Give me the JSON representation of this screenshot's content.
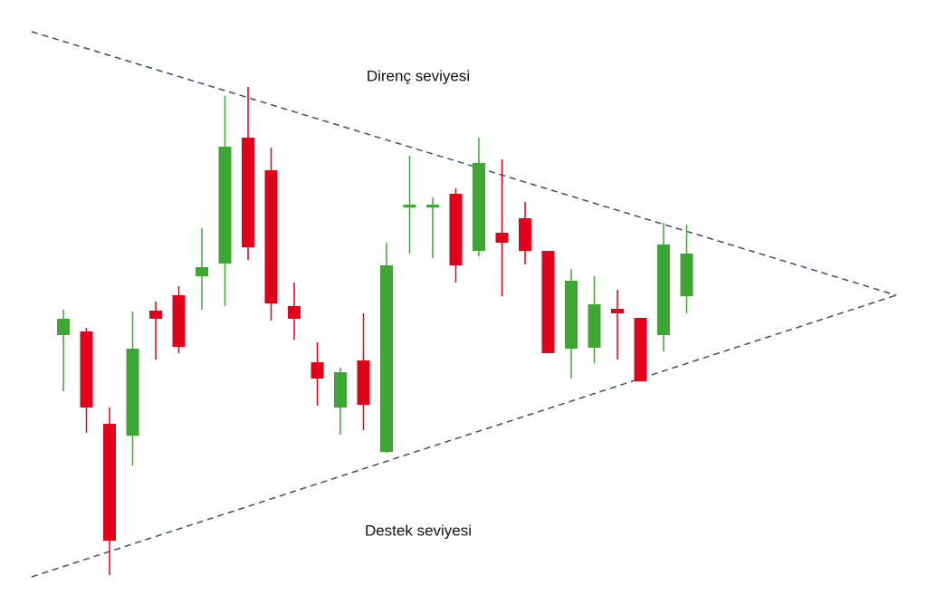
{
  "chart_data": {
    "type": "candlestick",
    "annotations": [
      {
        "text": "Direnç seviyesi"
      },
      {
        "text": "Destek seviyesi"
      }
    ],
    "up_color": "#3fa535",
    "down_color": "#e2001a",
    "ylim": [
      0,
      678
    ],
    "open": [
      308,
      312,
      210,
      197,
      335,
      352,
      373,
      387,
      526,
      490,
      340,
      278,
      228,
      280,
      179,
      449,
      449,
      464,
      401,
      421,
      437,
      401,
      293,
      294,
      337,
      327,
      308,
      351
    ],
    "high": [
      336,
      316,
      228,
      334,
      345,
      362,
      426,
      572,
      582,
      515,
      366,
      300,
      272,
      332,
      410,
      506,
      460,
      470,
      526,
      502,
      455,
      401,
      381,
      373,
      358,
      327,
      432,
      430
    ],
    "low": [
      246,
      200,
      43,
      164,
      281,
      288,
      336,
      340,
      391,
      324,
      303,
      230,
      198,
      203,
      178,
      398,
      393,
      366,
      395,
      351,
      386,
      288,
      260,
      277,
      281,
      257,
      290,
      332
    ],
    "close": [
      326,
      228,
      81,
      293,
      326,
      295,
      383,
      516,
      405,
      343,
      326,
      260,
      267,
      231,
      385,
      452,
      452,
      385,
      498,
      410,
      401,
      288,
      368,
      342,
      332,
      257,
      408,
      398
    ]
  }
}
